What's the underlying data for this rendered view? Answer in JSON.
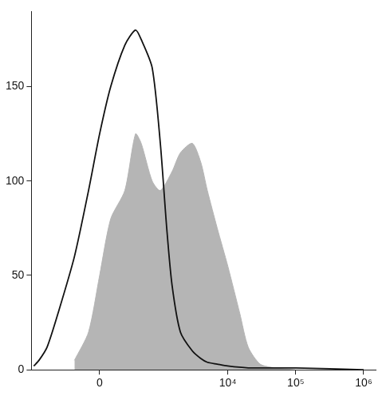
{
  "chart_data": {
    "type": "line",
    "series": [
      {
        "type": "line",
        "color": "#111111",
        "x": [
          -1200,
          -1000,
          -750,
          -500,
          -250,
          -100,
          0,
          100,
          250,
          400,
          500,
          750,
          1000,
          1250,
          1500,
          2000,
          3000,
          4000,
          5000,
          7000,
          10000,
          20000,
          50000,
          100000,
          1000000
        ],
        "values": [
          2,
          5,
          12,
          30,
          60,
          95,
          125,
          150,
          172,
          180,
          175,
          160,
          120,
          75,
          45,
          20,
          10,
          6,
          4,
          3,
          2,
          1,
          1,
          1,
          0
        ]
      },
      {
        "type": "area",
        "color": "#b5b5b5",
        "x": [
          -250,
          -100,
          0,
          100,
          250,
          400,
          500,
          750,
          1000,
          1500,
          2000,
          3000,
          4000,
          5000,
          7000,
          10000,
          15000,
          20000,
          30000,
          50000,
          100000
        ],
        "values": [
          5,
          20,
          50,
          80,
          95,
          125,
          120,
          100,
          95,
          105,
          115,
          120,
          110,
          95,
          75,
          55,
          30,
          12,
          3,
          1,
          0
        ]
      }
    ],
    "xlim": [
      -1300,
      1500000
    ],
    "xticks": [
      0,
      {
        "value": 10000,
        "label": "10⁴"
      },
      {
        "value": 100000,
        "label": "10⁵"
      },
      {
        "value": 1000000,
        "label": "10⁶"
      }
    ],
    "ylim": [
      0,
      190
    ],
    "yticks": [
      0,
      50,
      100,
      150
    ],
    "grid": false
  }
}
